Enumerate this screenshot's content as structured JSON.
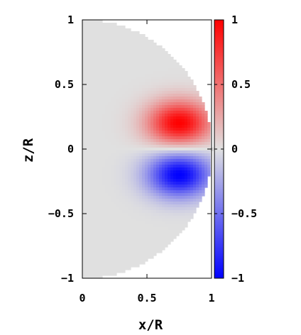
{
  "chart_data": {
    "type": "heatmap",
    "title": "",
    "xlabel": "x/R",
    "ylabel": "z/R",
    "xlim": [
      0,
      1
    ],
    "ylim": [
      -1,
      1
    ],
    "x_ticks": [
      "0",
      "0.5",
      "1"
    ],
    "y_ticks": [
      "1",
      "0.5",
      "0",
      "−0.5",
      "−1"
    ],
    "colorbar": {
      "range": [
        -1,
        1
      ],
      "ticks": [
        "1",
        "0.5",
        "0",
        "−0.5",
        "−1"
      ],
      "colors": {
        "min": "#0000ff",
        "mid": "#e0e0e0",
        "max": "#ff0000"
      }
    },
    "domain": "half-disk x^2 + z^2 <= 1, x >= 0",
    "features": [
      {
        "sign": "positive",
        "peak_x": 0.75,
        "peak_z": 0.2,
        "peak_value": 1.0
      },
      {
        "sign": "negative",
        "peak_x": 0.75,
        "peak_z": -0.2,
        "peak_value": -1.0
      }
    ]
  }
}
